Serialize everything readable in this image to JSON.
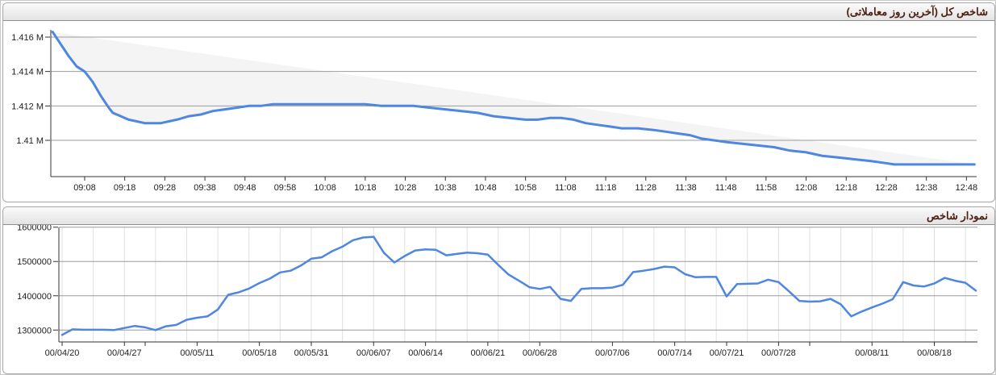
{
  "panels": [
    {
      "title": "شاخص کل (آخرین روز معاملاتی)"
    },
    {
      "title": "نمودار شاخص"
    }
  ],
  "colors": {
    "line": "#4e86e0",
    "grid": "#9b9b9b",
    "minor_grid": "#e0e0e0",
    "axis": "#333333",
    "label": "#222222",
    "area_fill": "rgba(135,135,135,0.09)",
    "header_text": "#4a2113",
    "panel_border": "#a6a6a6"
  },
  "chart_data": [
    {
      "type": "line",
      "title": "شاخص کل (آخرین روز معاملاتی)",
      "note": "intraday total index, light gray band fills area between the line and the straight segment joining first and last points",
      "grid": "horizontal only",
      "legend": "none",
      "ylim": [
        1.4079,
        1.4165
      ],
      "y_ticks": [
        {
          "value": 1.416,
          "label": "1.416 M"
        },
        {
          "value": 1.414,
          "label": "1.414 M"
        },
        {
          "value": 1.412,
          "label": "1.412 M"
        },
        {
          "value": 1.41,
          "label": "1.41 M"
        }
      ],
      "x_unit": "minutes after 09:00",
      "x_ticks": [
        {
          "t": 8,
          "label": "09:08"
        },
        {
          "t": 18,
          "label": "09:18"
        },
        {
          "t": 28,
          "label": "09:28"
        },
        {
          "t": 38,
          "label": "09:38"
        },
        {
          "t": 48,
          "label": "09:48"
        },
        {
          "t": 58,
          "label": "09:58"
        },
        {
          "t": 68,
          "label": "10:08"
        },
        {
          "t": 78,
          "label": "10:18"
        },
        {
          "t": 88,
          "label": "10:28"
        },
        {
          "t": 98,
          "label": "10:38"
        },
        {
          "t": 108,
          "label": "10:48"
        },
        {
          "t": 118,
          "label": "10:58"
        },
        {
          "t": 128,
          "label": "11:08"
        },
        {
          "t": 138,
          "label": "11:18"
        },
        {
          "t": 148,
          "label": "11:28"
        },
        {
          "t": 158,
          "label": "11:38"
        },
        {
          "t": 168,
          "label": "11:48"
        },
        {
          "t": 178,
          "label": "11:58"
        },
        {
          "t": 188,
          "label": "12:08"
        },
        {
          "t": 198,
          "label": "12:18"
        },
        {
          "t": 208,
          "label": "12:28"
        },
        {
          "t": 218,
          "label": "12:38"
        },
        {
          "t": 228,
          "label": "12:48"
        }
      ],
      "points": [
        [
          0,
          1.4163
        ],
        [
          2,
          1.4156
        ],
        [
          4,
          1.4149
        ],
        [
          6,
          1.4143
        ],
        [
          8,
          1.414
        ],
        [
          10,
          1.4134
        ],
        [
          12,
          1.4126
        ],
        [
          14,
          1.4119
        ],
        [
          15,
          1.4116
        ],
        [
          17,
          1.4114
        ],
        [
          19,
          1.4112
        ],
        [
          21,
          1.4111
        ],
        [
          23,
          1.411
        ],
        [
          25,
          1.411
        ],
        [
          27,
          1.411
        ],
        [
          29,
          1.4111
        ],
        [
          31,
          1.4112
        ],
        [
          34,
          1.4114
        ],
        [
          37,
          1.4115
        ],
        [
          40,
          1.4117
        ],
        [
          43,
          1.4118
        ],
        [
          46,
          1.4119
        ],
        [
          49,
          1.412
        ],
        [
          52,
          1.412
        ],
        [
          55,
          1.4121
        ],
        [
          58,
          1.4121
        ],
        [
          62,
          1.4121
        ],
        [
          66,
          1.4121
        ],
        [
          70,
          1.4121
        ],
        [
          74,
          1.4121
        ],
        [
          78,
          1.4121
        ],
        [
          82,
          1.412
        ],
        [
          86,
          1.412
        ],
        [
          90,
          1.412
        ],
        [
          94,
          1.4119
        ],
        [
          98,
          1.4118
        ],
        [
          102,
          1.4117
        ],
        [
          106,
          1.4116
        ],
        [
          110,
          1.4114
        ],
        [
          114,
          1.4113
        ],
        [
          118,
          1.4112
        ],
        [
          121,
          1.4112
        ],
        [
          124,
          1.4113
        ],
        [
          127,
          1.4113
        ],
        [
          130,
          1.4112
        ],
        [
          133,
          1.411
        ],
        [
          136,
          1.4109
        ],
        [
          139,
          1.4108
        ],
        [
          142,
          1.4107
        ],
        [
          146,
          1.4107
        ],
        [
          150,
          1.4106
        ],
        [
          153,
          1.4105
        ],
        [
          156,
          1.4104
        ],
        [
          159,
          1.4103
        ],
        [
          162,
          1.4101
        ],
        [
          165,
          1.41
        ],
        [
          168,
          1.4099
        ],
        [
          172,
          1.4098
        ],
        [
          176,
          1.4097
        ],
        [
          180,
          1.4096
        ],
        [
          184,
          1.4094
        ],
        [
          188,
          1.4093
        ],
        [
          192,
          1.4091
        ],
        [
          196,
          1.409
        ],
        [
          200,
          1.4089
        ],
        [
          204,
          1.4088
        ],
        [
          207,
          1.4087
        ],
        [
          210,
          1.4086
        ],
        [
          214,
          1.4086
        ],
        [
          218,
          1.4086
        ],
        [
          222,
          1.4086
        ],
        [
          226,
          1.4086
        ],
        [
          230,
          1.4086
        ]
      ]
    },
    {
      "type": "line",
      "title": "نمودار شاخص",
      "note": "daily index history, one value per trading day",
      "grid": "horizontal major + faint vertical minor",
      "legend": "none",
      "ylim": [
        1264000,
        1601000
      ],
      "y_ticks": [
        {
          "value": 1600000,
          "label": "1600000"
        },
        {
          "value": 1500000,
          "label": "1500000"
        },
        {
          "value": 1400000,
          "label": "1400000"
        },
        {
          "value": 1300000,
          "label": "1300000"
        }
      ],
      "x_unit": "trading day index",
      "x_ticks": [
        {
          "i": 0,
          "label": "00/04/20"
        },
        {
          "i": 6,
          "label": "00/04/27"
        },
        {
          "i": 8,
          "label": ""
        },
        {
          "i": 13,
          "label": "00/05/11"
        },
        {
          "i": 19,
          "label": "00/05/18"
        },
        {
          "i": 24,
          "label": "00/05/31"
        },
        {
          "i": 30,
          "label": "00/06/07"
        },
        {
          "i": 35,
          "label": "00/06/14"
        },
        {
          "i": 41,
          "label": "00/06/21"
        },
        {
          "i": 46,
          "label": "00/06/28"
        },
        {
          "i": 53,
          "label": "00/07/06"
        },
        {
          "i": 59,
          "label": "00/07/14"
        },
        {
          "i": 64,
          "label": "00/07/21"
        },
        {
          "i": 69,
          "label": "00/07/28"
        },
        {
          "i": 72,
          "label": ""
        },
        {
          "i": 78,
          "label": "00/08/11"
        },
        {
          "i": 84,
          "label": "00/08/18"
        }
      ],
      "values": [
        1286000,
        1302000,
        1301000,
        1301000,
        1301000,
        1300000,
        1306000,
        1312000,
        1308000,
        1300000,
        1311000,
        1315000,
        1330000,
        1336000,
        1340000,
        1360000,
        1403000,
        1410000,
        1421000,
        1437000,
        1450000,
        1468000,
        1473000,
        1488000,
        1508000,
        1512000,
        1530000,
        1543000,
        1562000,
        1570000,
        1572000,
        1525000,
        1497000,
        1516000,
        1532000,
        1535000,
        1534000,
        1518000,
        1522000,
        1526000,
        1524000,
        1520000,
        1490000,
        1462000,
        1444000,
        1425000,
        1420000,
        1426000,
        1391000,
        1385000,
        1420000,
        1422000,
        1422000,
        1424000,
        1432000,
        1469000,
        1473000,
        1478000,
        1485000,
        1483000,
        1463000,
        1454000,
        1455000,
        1455000,
        1398000,
        1434000,
        1435000,
        1436000,
        1447000,
        1440000,
        1413000,
        1385000,
        1383000,
        1384000,
        1391000,
        1375000,
        1340000,
        1354000,
        1366000,
        1377000,
        1390000,
        1440000,
        1430000,
        1427000,
        1436000,
        1452000,
        1444000,
        1438000,
        1415000
      ]
    }
  ]
}
